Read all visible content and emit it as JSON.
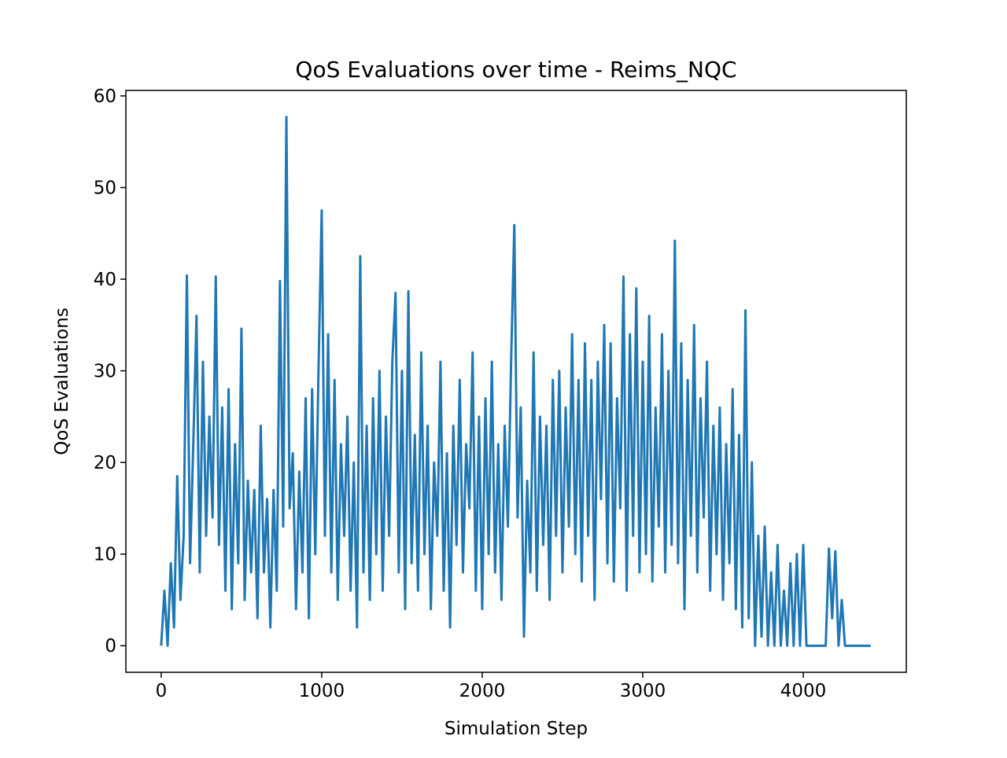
{
  "chart_data": {
    "type": "line",
    "title": "QoS Evaluations over time - Reims_NQC",
    "x_label": "Simulation Step",
    "y_label": "QoS Evaluations",
    "xlim": [
      -220,
      4642
    ],
    "ylim": [
      -2.9,
      60.6
    ],
    "xticks": [
      0,
      1000,
      2000,
      3000,
      4000
    ],
    "yticks": [
      0,
      10,
      20,
      30,
      40,
      50,
      60
    ],
    "grid": false,
    "series": [
      {
        "name": "QoS Evaluations",
        "color": "#1f77b4",
        "x": [
          0,
          20,
          40,
          60,
          80,
          100,
          120,
          140,
          160,
          180,
          200,
          220,
          240,
          260,
          280,
          300,
          320,
          340,
          360,
          380,
          400,
          420,
          440,
          460,
          480,
          500,
          520,
          540,
          560,
          580,
          600,
          620,
          640,
          660,
          680,
          700,
          720,
          740,
          760,
          780,
          800,
          820,
          840,
          860,
          880,
          900,
          920,
          940,
          960,
          980,
          1000,
          1020,
          1040,
          1060,
          1080,
          1100,
          1120,
          1140,
          1160,
          1180,
          1200,
          1220,
          1240,
          1260,
          1280,
          1300,
          1320,
          1340,
          1360,
          1380,
          1400,
          1420,
          1440,
          1460,
          1480,
          1500,
          1520,
          1540,
          1560,
          1580,
          1600,
          1620,
          1640,
          1660,
          1680,
          1700,
          1720,
          1740,
          1760,
          1780,
          1800,
          1820,
          1840,
          1860,
          1880,
          1900,
          1920,
          1940,
          1960,
          1980,
          2000,
          2020,
          2040,
          2060,
          2080,
          2100,
          2120,
          2140,
          2160,
          2180,
          2200,
          2220,
          2240,
          2260,
          2280,
          2300,
          2320,
          2340,
          2360,
          2380,
          2400,
          2420,
          2440,
          2460,
          2480,
          2500,
          2520,
          2540,
          2560,
          2580,
          2600,
          2620,
          2640,
          2660,
          2680,
          2700,
          2720,
          2740,
          2760,
          2780,
          2800,
          2820,
          2840,
          2860,
          2880,
          2900,
          2920,
          2940,
          2960,
          2980,
          3000,
          3020,
          3040,
          3060,
          3080,
          3100,
          3120,
          3140,
          3160,
          3180,
          3200,
          3220,
          3240,
          3260,
          3280,
          3300,
          3320,
          3340,
          3360,
          3380,
          3400,
          3420,
          3440,
          3460,
          3480,
          3500,
          3520,
          3540,
          3560,
          3580,
          3600,
          3620,
          3640,
          3660,
          3680,
          3700,
          3720,
          3740,
          3760,
          3780,
          3800,
          3820,
          3840,
          3860,
          3880,
          3900,
          3920,
          3940,
          3960,
          3980,
          4000,
          4020,
          4040,
          4060,
          4080,
          4100,
          4120,
          4140,
          4160,
          4180,
          4200,
          4220,
          4240,
          4260,
          4280,
          4300,
          4320,
          4340,
          4360,
          4380,
          4400,
          4420
        ],
        "values": [
          0,
          6,
          0,
          9,
          2,
          18.5,
          5,
          12,
          40.4,
          9,
          22,
          36,
          8,
          31,
          12,
          25,
          14,
          40.3,
          11,
          26,
          6,
          28,
          4,
          22,
          9,
          34.6,
          5,
          18,
          8,
          17,
          3,
          24,
          8,
          16,
          2,
          17,
          6,
          39.8,
          13,
          57.7,
          15,
          21,
          4,
          19,
          8,
          27,
          3,
          28,
          10,
          30,
          47.5,
          12,
          34,
          8,
          29,
          5,
          22,
          12,
          25,
          6,
          20,
          2,
          42.5,
          8,
          24,
          5,
          27,
          10,
          30,
          6,
          25,
          12,
          31,
          38.5,
          8,
          30,
          4,
          38.7,
          9,
          23,
          6,
          32,
          10,
          24,
          4,
          20,
          12,
          31,
          6,
          21,
          2,
          24,
          11,
          29,
          8,
          22,
          15,
          32,
          6,
          25,
          4,
          27,
          10,
          31,
          8,
          22,
          5,
          24,
          13,
          31,
          45.9,
          14,
          26,
          1,
          18,
          8,
          32,
          6,
          25,
          11,
          24,
          5,
          29,
          12,
          30,
          8,
          26,
          13,
          34,
          10,
          29,
          7,
          33,
          12,
          29,
          5,
          31,
          16,
          35,
          9,
          33,
          7,
          27,
          15,
          40.3,
          6,
          34,
          12,
          39,
          8,
          31,
          10,
          36,
          7,
          26,
          13,
          34,
          8,
          30,
          11,
          44.2,
          9,
          33,
          4,
          29,
          12,
          35,
          8,
          27,
          14,
          31,
          6,
          24,
          10,
          26,
          5,
          22,
          9,
          28,
          4,
          23,
          2,
          36.6,
          3,
          20,
          0,
          12,
          1,
          13,
          0,
          8,
          0,
          11,
          0,
          6,
          0,
          9,
          0,
          10,
          0,
          11,
          0,
          0,
          0,
          0,
          0,
          0,
          0,
          10.6,
          3,
          10.3,
          0,
          5,
          0,
          0,
          0,
          0,
          0,
          0,
          0,
          0,
          0
        ]
      }
    ]
  }
}
